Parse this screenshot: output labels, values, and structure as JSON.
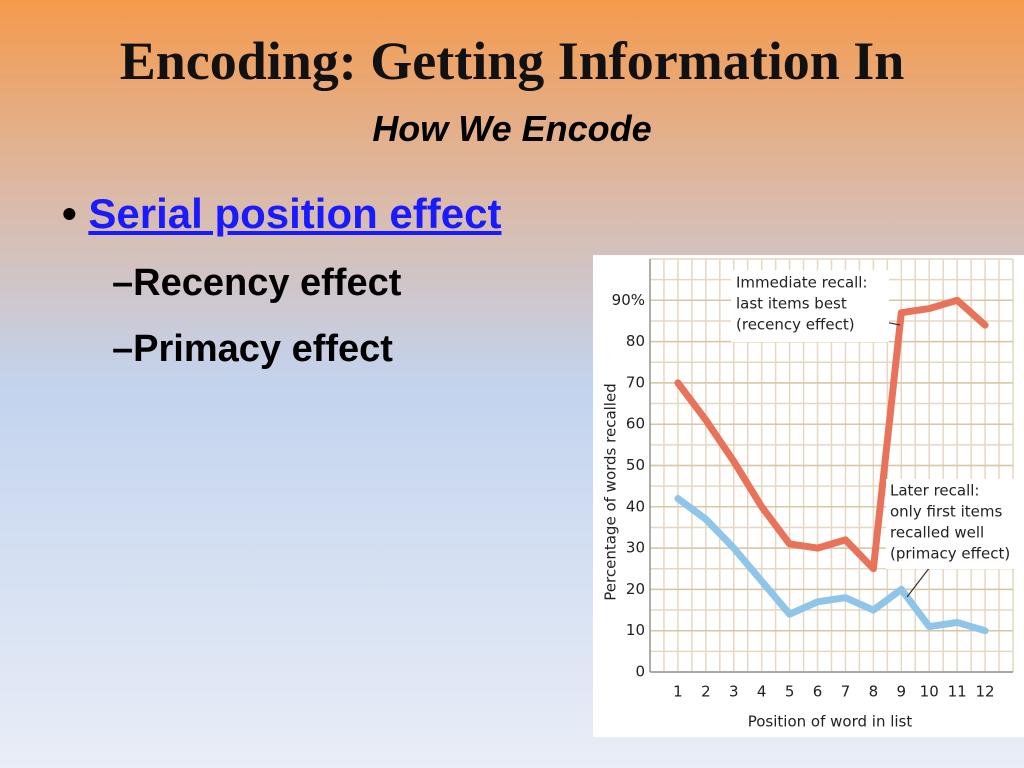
{
  "header": {
    "title": "Encoding: Getting Information In",
    "subtitle": "How We Encode"
  },
  "bullets": [
    {
      "text": "Serial position effect",
      "sub": [
        "Recency effect",
        "Primacy effect"
      ]
    }
  ],
  "chart_data": {
    "type": "line",
    "x": [
      1,
      2,
      3,
      4,
      5,
      6,
      7,
      8,
      9,
      10,
      11,
      12
    ],
    "xlim": [
      0,
      13
    ],
    "ylim": [
      0,
      100
    ],
    "yticks": [
      0,
      10,
      20,
      30,
      40,
      50,
      60,
      70,
      80,
      {
        "value": 90,
        "label": "90%"
      }
    ],
    "xlabel": "Position of word in list",
    "ylabel": "Percentage  of words recalled",
    "grid": true,
    "series": [
      {
        "color": "#e8735a",
        "values": [
          70,
          61,
          51,
          40,
          31,
          30,
          32,
          25,
          87,
          88,
          90,
          84
        ]
      },
      {
        "color": "#8ec5e8",
        "values": [
          42,
          37,
          30,
          22,
          14,
          17,
          18,
          15,
          20,
          11,
          12,
          10
        ]
      }
    ],
    "annotations": [
      {
        "lines": [
          "Immediate recall:",
          "last items best",
          "(recency effect)"
        ]
      },
      {
        "lines": [
          "Later recall:",
          "only first items",
          "recalled well",
          "(primacy effect)"
        ]
      }
    ]
  }
}
